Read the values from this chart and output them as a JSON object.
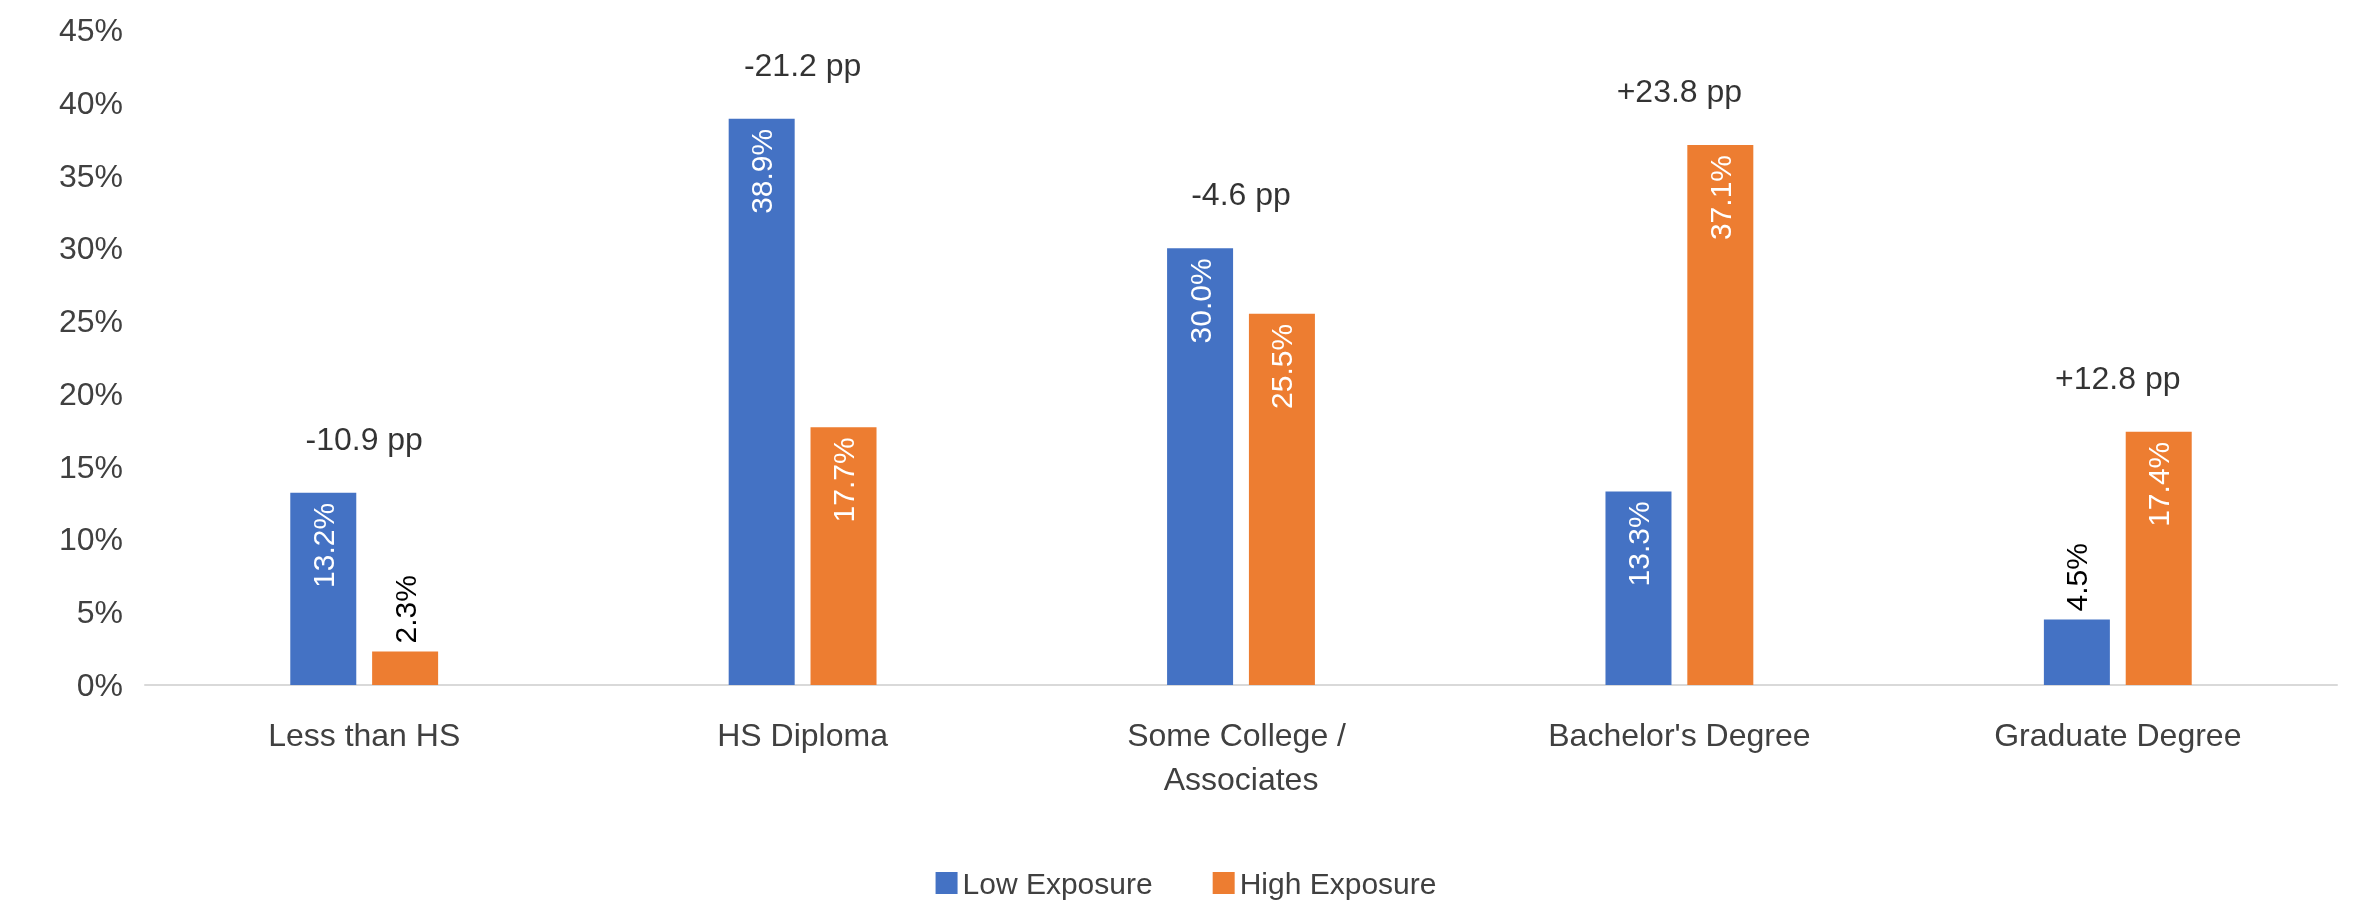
{
  "chart_data": {
    "type": "bar",
    "categories": [
      "Less than HS",
      "HS Diploma",
      "Some College / Associates",
      "Bachelor's Degree",
      "Graduate Degree"
    ],
    "series": [
      {
        "name": "Low Exposure",
        "color": "#4472c4",
        "values": [
          13.2,
          38.9,
          30.0,
          13.3,
          4.5
        ],
        "value_labels": [
          "13.2%",
          "38.9%",
          "30.0%",
          "13.3%",
          "4.5%"
        ]
      },
      {
        "name": "High Exposure",
        "color": "#ed7d31",
        "values": [
          2.3,
          17.7,
          25.5,
          37.1,
          17.4
        ],
        "value_labels": [
          "2.3%",
          "17.7%",
          "25.5%",
          "37.1%",
          "17.4%"
        ]
      }
    ],
    "ylim": [
      0,
      45
    ],
    "yticks": [
      {
        "value": 0,
        "label": "0%"
      },
      {
        "value": 5,
        "label": "5%"
      },
      {
        "value": 10,
        "label": "10%"
      },
      {
        "value": 15,
        "label": "15%"
      },
      {
        "value": 20,
        "label": "20%"
      },
      {
        "value": 25,
        "label": "25%"
      },
      {
        "value": 30,
        "label": "30%"
      },
      {
        "value": 35,
        "label": "35%"
      },
      {
        "value": 40,
        "label": "40%"
      },
      {
        "value": 45,
        "label": "45%"
      }
    ],
    "annotations": [
      "-10.9 pp",
      "-21.2 pp",
      "-4.6 pp",
      "+23.8 pp",
      "+12.8 pp"
    ],
    "grid": false,
    "legend": "bottom"
  }
}
